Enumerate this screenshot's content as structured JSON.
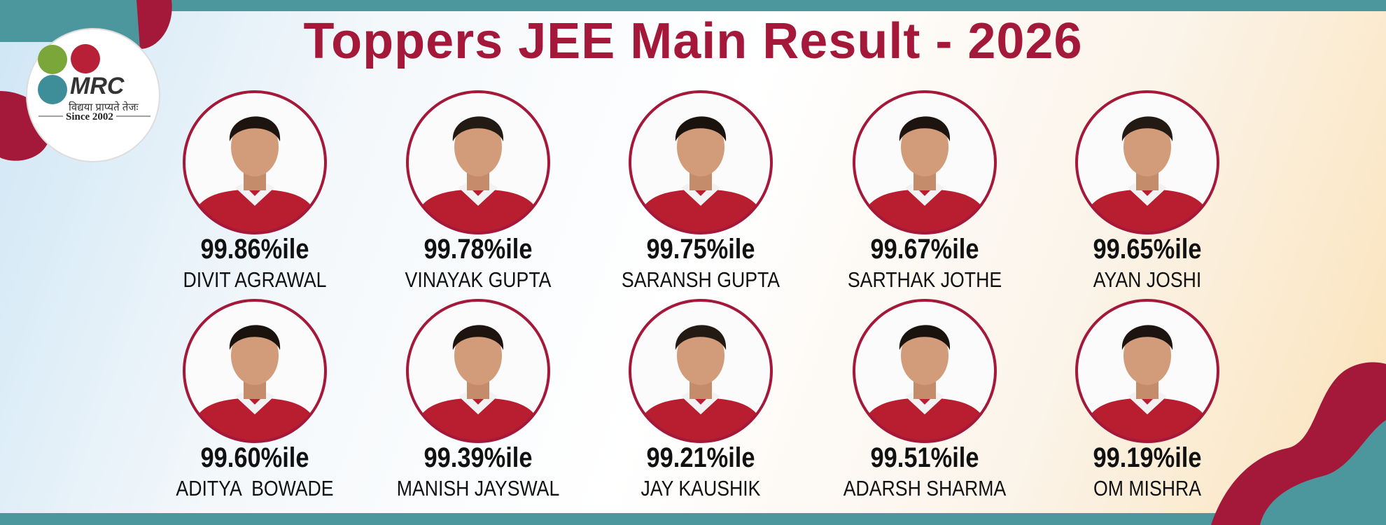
{
  "header": {
    "title": "Toppers JEE Main Result - 2026"
  },
  "logo": {
    "name": "MRC",
    "motto": "विद्यया प्राप्यते तेजः",
    "since": "Since 2002"
  },
  "toppers": [
    {
      "score": "99.86%ile",
      "name": "DIVIT AGRAWAL"
    },
    {
      "score": "99.78%ile",
      "name": "VINAYAK GUPTA"
    },
    {
      "score": "99.75%ile",
      "name": "SARANSH GUPTA"
    },
    {
      "score": "99.67%ile",
      "name": "SARTHAK JOTHE"
    },
    {
      "score": "99.65%ile",
      "name": "AYAN JOSHI"
    },
    {
      "score": "99.60%ile",
      "name": "ADITYA  BOWADE"
    },
    {
      "score": "99.39%ile",
      "name": "MANISH JAYSWAL"
    },
    {
      "score": "99.21%ile",
      "name": "JAY KAUSHIK"
    },
    {
      "score": "99.51%ile",
      "name": "ADARSH SHARMA"
    },
    {
      "score": "99.19%ile",
      "name": "OM MISHRA"
    }
  ]
}
